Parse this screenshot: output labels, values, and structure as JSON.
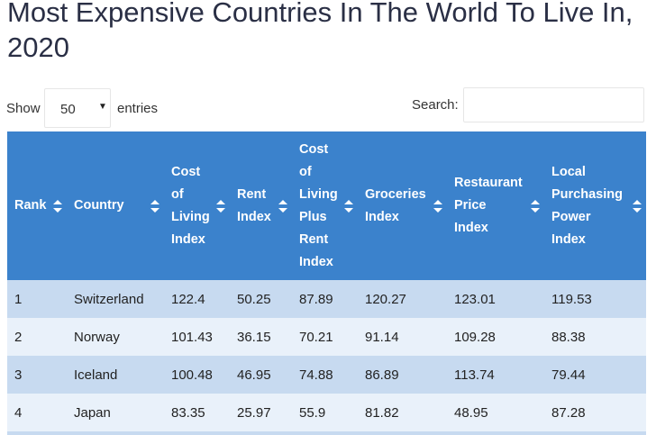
{
  "title": "Most Expensive Countries In The World To Live In, 2020",
  "controls": {
    "show_label": "Show",
    "entries_value": "50",
    "entries_label": "entries",
    "search_label": "Search:",
    "search_value": ""
  },
  "table": {
    "header_color": "#3b82cc",
    "columns": [
      "Rank",
      "Country",
      "Cost of Living Index",
      "Rent Index",
      "Cost of Living Plus Rent Index",
      "Groceries Index",
      "Restaurant Price Index",
      "Local Purchasing Power Index"
    ],
    "rows": [
      [
        "1",
        "Switzerland",
        "122.4",
        "50.25",
        "87.89",
        "120.27",
        "123.01",
        "119.53"
      ],
      [
        "2",
        "Norway",
        "101.43",
        "36.15",
        "70.21",
        "91.14",
        "109.28",
        "88.38"
      ],
      [
        "3",
        "Iceland",
        "100.48",
        "46.95",
        "74.88",
        "86.89",
        "113.74",
        "79.44"
      ],
      [
        "4",
        "Japan",
        "83.35",
        "25.97",
        "55.9",
        "81.82",
        "48.95",
        "87.28"
      ]
    ]
  }
}
